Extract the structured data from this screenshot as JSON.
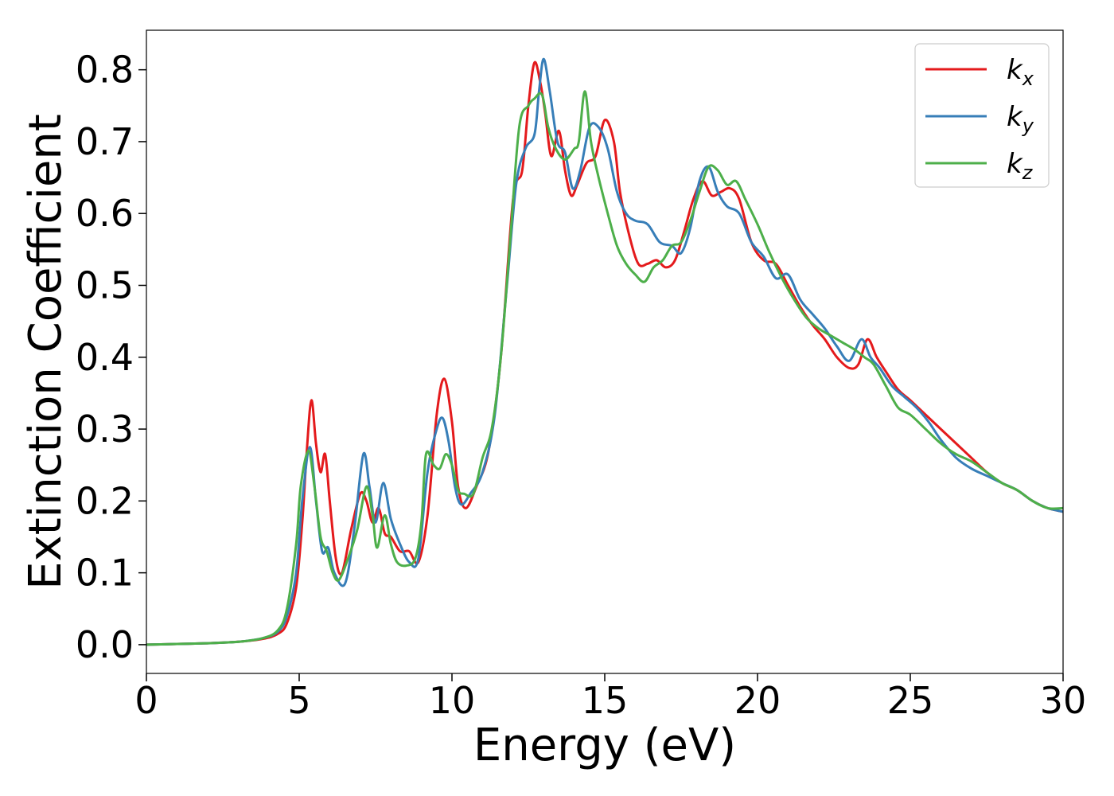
{
  "chart_data": {
    "type": "line",
    "title": "",
    "xlabel": "Energy (eV)",
    "ylabel": "Extinction Coefficient",
    "xlim": [
      0,
      30
    ],
    "ylim": [
      -0.04,
      0.855
    ],
    "xticks": [
      0,
      5,
      10,
      15,
      20,
      25,
      30
    ],
    "yticks": [
      0.0,
      0.1,
      0.2,
      0.3,
      0.4,
      0.5,
      0.6,
      0.7,
      0.8
    ],
    "ytick_labels": [
      "0.0",
      "0.1",
      "0.2",
      "0.3",
      "0.4",
      "0.5",
      "0.6",
      "0.7",
      "0.8"
    ],
    "grid": false,
    "legend_position": "top-right",
    "series": [
      {
        "name": "k",
        "subscript": "x",
        "color": "#e41a1c",
        "x": [
          0,
          1,
          2,
          3,
          3.8,
          4.3,
          4.6,
          4.9,
          5.1,
          5.25,
          5.4,
          5.55,
          5.7,
          5.85,
          6.0,
          6.2,
          6.4,
          6.7,
          7.0,
          7.2,
          7.4,
          7.6,
          7.8,
          8.0,
          8.3,
          8.6,
          8.9,
          9.2,
          9.5,
          9.75,
          10.0,
          10.2,
          10.45,
          10.8,
          11.2,
          11.6,
          12.0,
          12.3,
          12.5,
          12.7,
          12.9,
          13.05,
          13.25,
          13.5,
          13.7,
          13.9,
          14.1,
          14.4,
          14.7,
          15.0,
          15.3,
          15.5,
          15.8,
          16.1,
          16.4,
          16.7,
          17.0,
          17.3,
          17.6,
          17.9,
          18.2,
          18.5,
          18.8,
          19.1,
          19.4,
          19.8,
          20.2,
          20.6,
          21.0,
          21.4,
          21.8,
          22.2,
          22.6,
          23.0,
          23.3,
          23.6,
          23.9,
          24.2,
          24.6,
          25.0,
          25.5,
          26.0,
          26.5,
          27.0,
          27.5,
          28.0,
          28.5,
          29.0,
          29.5,
          30.0
        ],
        "y": [
          0.0,
          0.001,
          0.002,
          0.004,
          0.008,
          0.015,
          0.03,
          0.08,
          0.17,
          0.27,
          0.34,
          0.28,
          0.24,
          0.265,
          0.2,
          0.12,
          0.1,
          0.16,
          0.21,
          0.2,
          0.17,
          0.19,
          0.155,
          0.15,
          0.13,
          0.13,
          0.115,
          0.18,
          0.32,
          0.37,
          0.31,
          0.22,
          0.19,
          0.22,
          0.27,
          0.4,
          0.62,
          0.66,
          0.75,
          0.81,
          0.78,
          0.74,
          0.68,
          0.715,
          0.66,
          0.625,
          0.64,
          0.67,
          0.68,
          0.73,
          0.7,
          0.63,
          0.57,
          0.53,
          0.53,
          0.535,
          0.525,
          0.535,
          0.575,
          0.62,
          0.645,
          0.625,
          0.63,
          0.635,
          0.62,
          0.56,
          0.535,
          0.53,
          0.5,
          0.47,
          0.445,
          0.425,
          0.4,
          0.385,
          0.39,
          0.425,
          0.4,
          0.38,
          0.355,
          0.34,
          0.32,
          0.3,
          0.28,
          0.26,
          0.24,
          0.225,
          0.215,
          0.2,
          0.19,
          0.185
        ]
      },
      {
        "name": "k",
        "subscript": "y",
        "color": "#377eb8",
        "x": [
          0,
          1,
          2,
          3,
          3.8,
          4.3,
          4.6,
          4.9,
          5.1,
          5.35,
          5.55,
          5.75,
          5.95,
          6.15,
          6.5,
          6.8,
          7.1,
          7.3,
          7.5,
          7.75,
          8.0,
          8.3,
          8.6,
          8.9,
          9.2,
          9.5,
          9.7,
          9.9,
          10.1,
          10.3,
          10.6,
          11.0,
          11.4,
          11.8,
          12.1,
          12.4,
          12.7,
          12.85,
          13.0,
          13.2,
          13.45,
          13.7,
          13.95,
          14.2,
          14.5,
          14.8,
          15.1,
          15.4,
          15.7,
          16.0,
          16.4,
          16.8,
          17.2,
          17.5,
          17.8,
          18.1,
          18.4,
          18.7,
          19.0,
          19.4,
          19.8,
          20.2,
          20.6,
          21.0,
          21.4,
          21.8,
          22.2,
          22.6,
          23.0,
          23.4,
          23.7,
          24.0,
          24.4,
          24.8,
          25.2,
          25.6,
          26.0,
          26.5,
          27.0,
          27.5,
          28.0,
          28.5,
          29.0,
          29.5,
          30.0
        ],
        "y": [
          0.0,
          0.001,
          0.002,
          0.004,
          0.009,
          0.018,
          0.04,
          0.1,
          0.2,
          0.275,
          0.2,
          0.13,
          0.135,
          0.1,
          0.085,
          0.16,
          0.265,
          0.22,
          0.17,
          0.225,
          0.175,
          0.14,
          0.115,
          0.12,
          0.24,
          0.3,
          0.315,
          0.28,
          0.22,
          0.195,
          0.21,
          0.24,
          0.32,
          0.5,
          0.64,
          0.69,
          0.71,
          0.77,
          0.815,
          0.77,
          0.7,
          0.685,
          0.635,
          0.66,
          0.72,
          0.72,
          0.69,
          0.63,
          0.6,
          0.59,
          0.585,
          0.56,
          0.555,
          0.545,
          0.58,
          0.645,
          0.665,
          0.63,
          0.61,
          0.6,
          0.56,
          0.54,
          0.51,
          0.515,
          0.48,
          0.46,
          0.44,
          0.415,
          0.395,
          0.425,
          0.4,
          0.385,
          0.36,
          0.345,
          0.33,
          0.31,
          0.285,
          0.26,
          0.245,
          0.235,
          0.225,
          0.215,
          0.2,
          0.19,
          0.185
        ]
      },
      {
        "name": "k",
        "subscript": "z",
        "color": "#4daf4a",
        "x": [
          0,
          1,
          2,
          3,
          3.8,
          4.3,
          4.6,
          4.9,
          5.05,
          5.3,
          5.5,
          5.7,
          5.9,
          6.1,
          6.3,
          6.6,
          6.9,
          7.2,
          7.4,
          7.55,
          7.8,
          8.0,
          8.2,
          8.5,
          8.8,
          9.0,
          9.15,
          9.4,
          9.6,
          9.8,
          10.0,
          10.2,
          10.4,
          10.7,
          11.0,
          11.3,
          11.6,
          11.9,
          12.2,
          12.5,
          12.7,
          12.95,
          13.15,
          13.4,
          13.7,
          14.0,
          14.15,
          14.35,
          14.55,
          14.8,
          15.1,
          15.4,
          15.7,
          16.0,
          16.3,
          16.6,
          16.9,
          17.2,
          17.5,
          17.8,
          18.1,
          18.4,
          18.7,
          19.0,
          19.3,
          19.6,
          20.0,
          20.4,
          20.8,
          21.2,
          21.6,
          22.0,
          22.4,
          22.8,
          23.2,
          23.5,
          23.8,
          24.2,
          24.6,
          25.0,
          25.5,
          26.0,
          26.5,
          27.0,
          27.5,
          28.0,
          28.5,
          29.0,
          29.5,
          30.0
        ],
        "y": [
          0.0,
          0.001,
          0.002,
          0.004,
          0.009,
          0.02,
          0.05,
          0.14,
          0.22,
          0.27,
          0.22,
          0.15,
          0.13,
          0.1,
          0.09,
          0.12,
          0.16,
          0.22,
          0.18,
          0.135,
          0.18,
          0.14,
          0.115,
          0.11,
          0.12,
          0.17,
          0.265,
          0.25,
          0.245,
          0.265,
          0.25,
          0.215,
          0.21,
          0.21,
          0.26,
          0.3,
          0.4,
          0.56,
          0.72,
          0.75,
          0.76,
          0.765,
          0.72,
          0.69,
          0.675,
          0.69,
          0.7,
          0.77,
          0.7,
          0.65,
          0.6,
          0.555,
          0.53,
          0.515,
          0.505,
          0.525,
          0.535,
          0.555,
          0.56,
          0.59,
          0.63,
          0.665,
          0.66,
          0.64,
          0.645,
          0.62,
          0.585,
          0.545,
          0.51,
          0.48,
          0.455,
          0.44,
          0.43,
          0.42,
          0.41,
          0.4,
          0.39,
          0.36,
          0.33,
          0.32,
          0.3,
          0.28,
          0.265,
          0.255,
          0.24,
          0.225,
          0.215,
          0.2,
          0.19,
          0.19
        ]
      }
    ]
  }
}
